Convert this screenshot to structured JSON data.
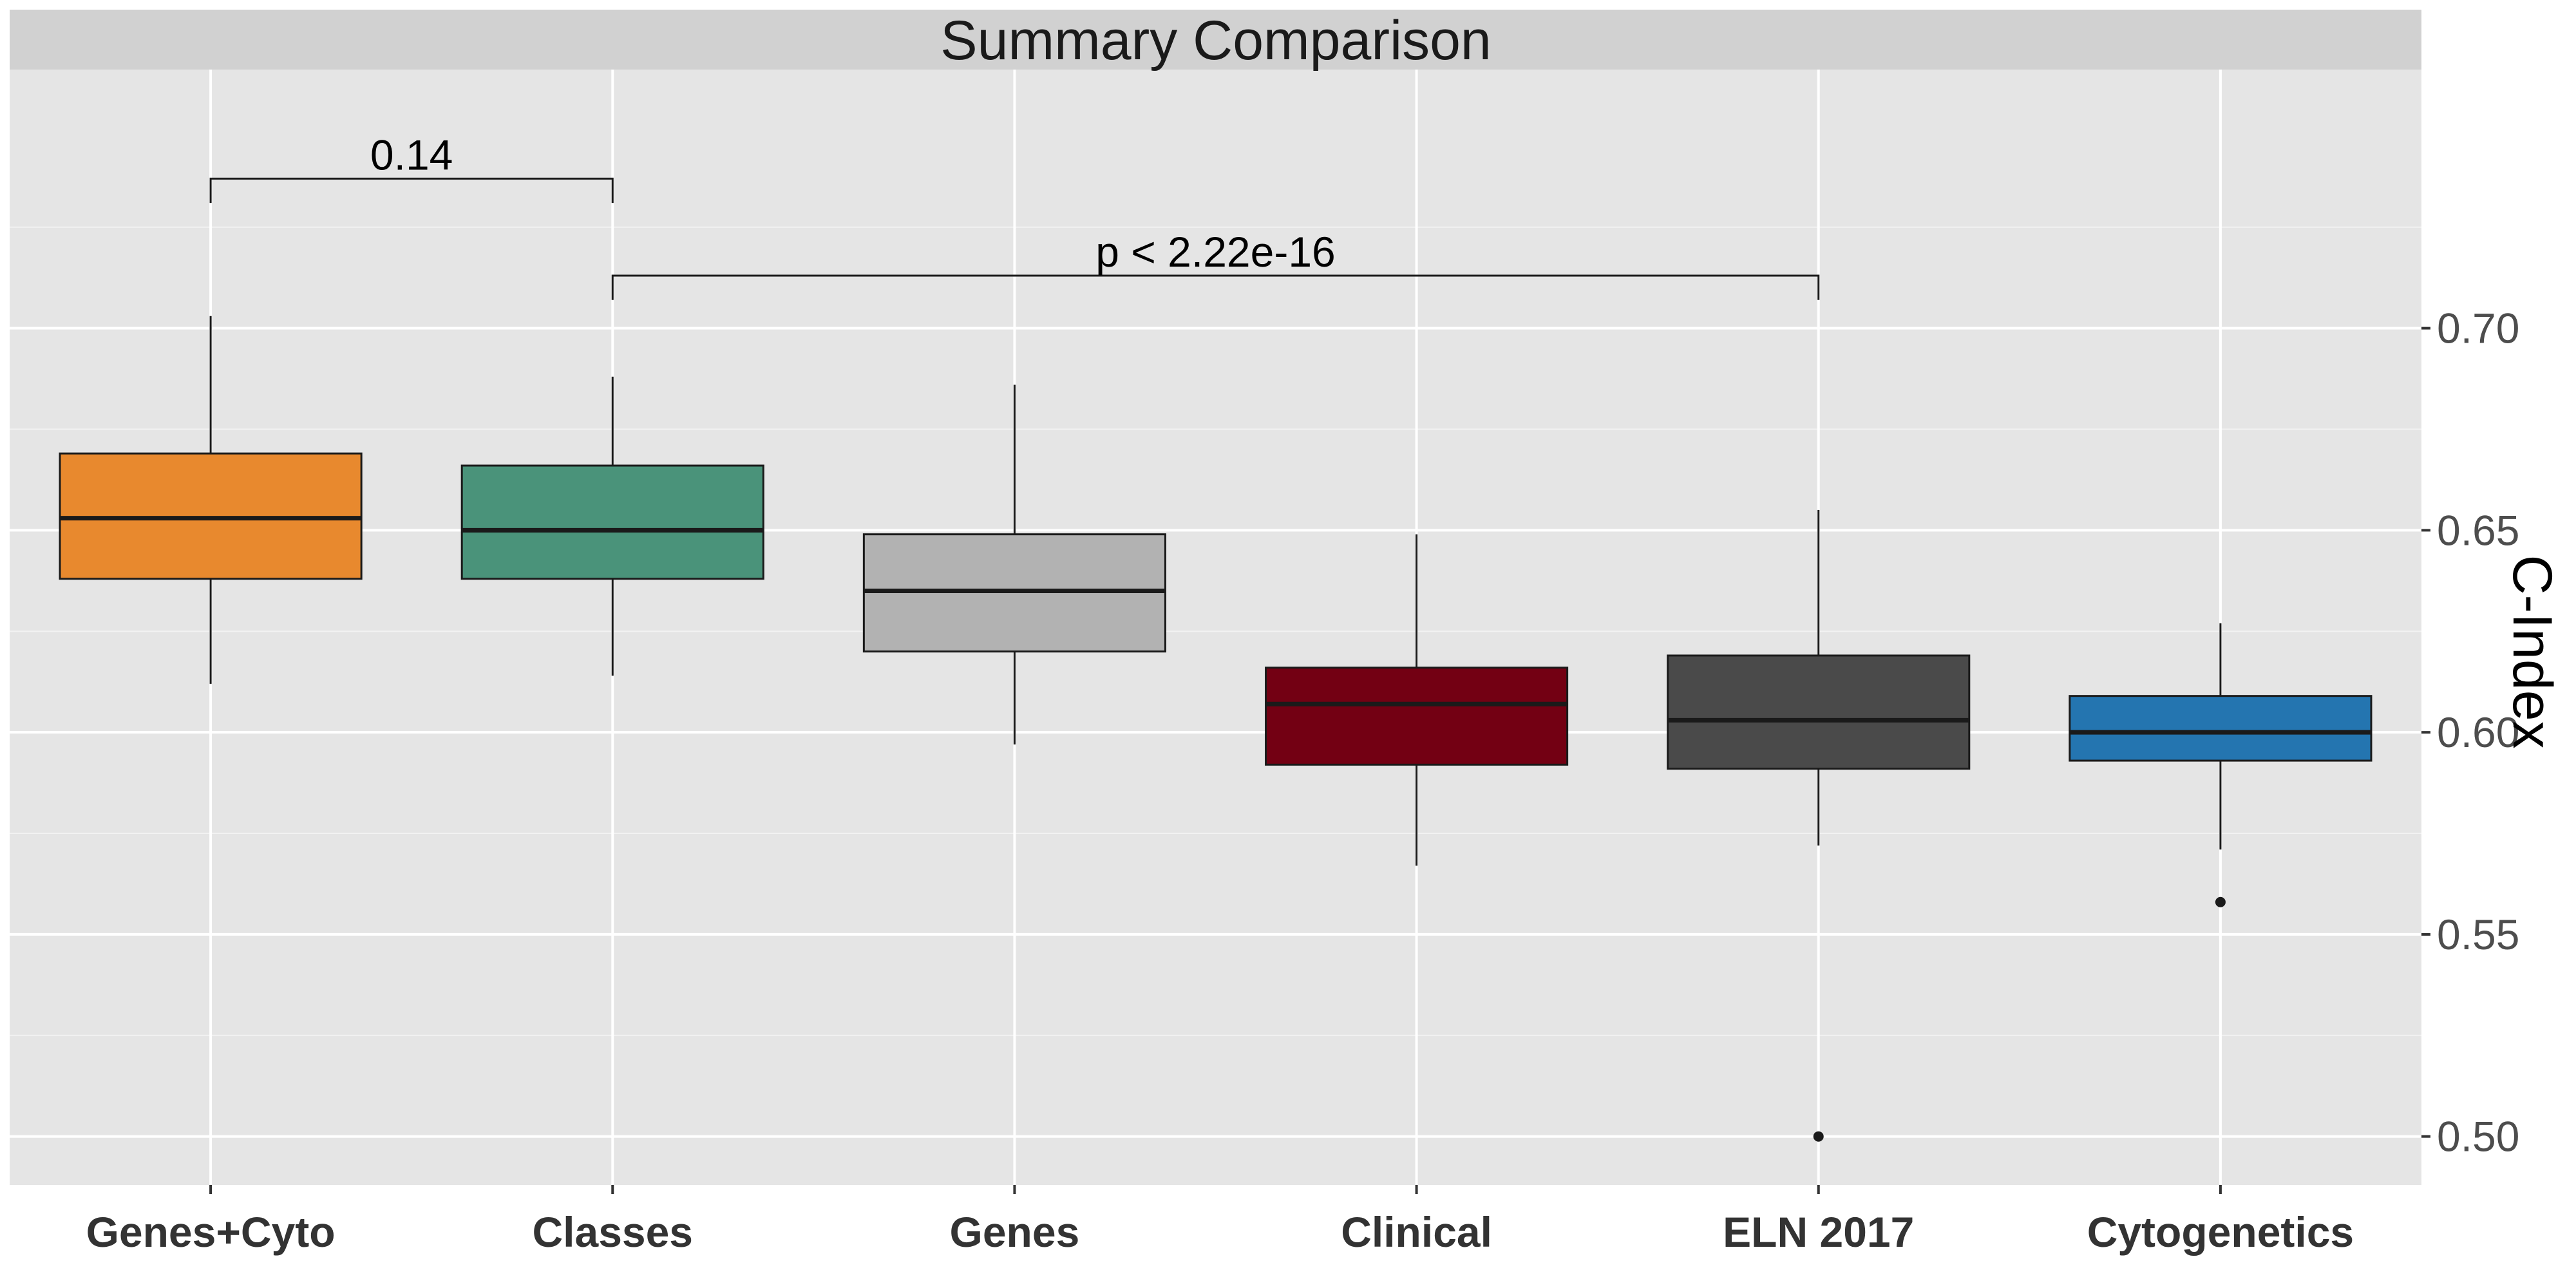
{
  "chart_data": {
    "type": "boxplot",
    "title": "Summary Comparison",
    "xlabel": "",
    "ylabel": "C-Index",
    "ylim": [
      0.488,
      0.764
    ],
    "y_ticks": [
      0.5,
      0.55,
      0.6,
      0.65,
      0.7
    ],
    "y_tick_labels": [
      "0.50",
      "0.55",
      "0.60",
      "0.65",
      "0.70"
    ],
    "y_axis_position": "right",
    "grid": true,
    "categories": [
      "Genes+Cyto",
      "Classes",
      "Genes",
      "Clinical",
      "ELN 2017",
      "Cytogenetics"
    ],
    "boxes": [
      {
        "category": "Genes+Cyto",
        "color": "#E8892E",
        "whisker_low": 0.612,
        "q1": 0.638,
        "median": 0.653,
        "q3": 0.669,
        "whisker_high": 0.703,
        "outliers": []
      },
      {
        "category": "Classes",
        "color": "#4A937A",
        "whisker_low": 0.614,
        "q1": 0.638,
        "median": 0.65,
        "q3": 0.666,
        "whisker_high": 0.688,
        "outliers": []
      },
      {
        "category": "Genes",
        "color": "#B2B2B2",
        "whisker_low": 0.597,
        "q1": 0.62,
        "median": 0.635,
        "q3": 0.649,
        "whisker_high": 0.686,
        "outliers": []
      },
      {
        "category": "Clinical",
        "color": "#730013",
        "whisker_low": 0.567,
        "q1": 0.592,
        "median": 0.607,
        "q3": 0.616,
        "whisker_high": 0.649,
        "outliers": []
      },
      {
        "category": "ELN 2017",
        "color": "#4A4A4A",
        "whisker_low": 0.572,
        "q1": 0.591,
        "median": 0.603,
        "q3": 0.619,
        "whisker_high": 0.655,
        "outliers": [
          0.5
        ]
      },
      {
        "category": "Cytogenetics",
        "color": "#2475B0",
        "whisker_low": 0.571,
        "q1": 0.593,
        "median": 0.6,
        "q3": 0.609,
        "whisker_high": 0.627,
        "outliers": [
          0.558
        ]
      }
    ],
    "annotations": [
      {
        "from": "Genes+Cyto",
        "to": "Classes",
        "label": "0.14",
        "y": 0.737,
        "tip_y": 0.731
      },
      {
        "from": "Classes",
        "to": "ELN 2017",
        "label": "p < 2.22e-16",
        "y": 0.713,
        "tip_y": 0.707
      }
    ]
  }
}
